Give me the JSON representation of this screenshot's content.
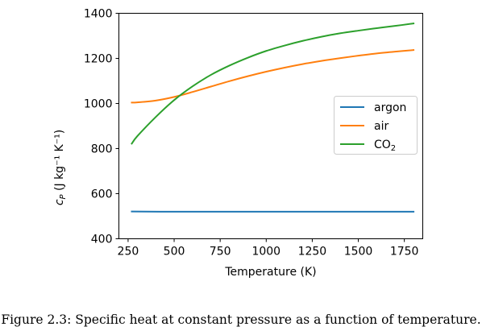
{
  "caption": "Figure 2.3: Specific heat at constant pressure as a function of temperature.",
  "chart_data": {
    "type": "line",
    "title": "",
    "xlabel": "Temperature (K)",
    "ylabel": "c_P (J kg⁻¹ K⁻¹)",
    "xlim": [
      200,
      1850
    ],
    "ylim": [
      400,
      1400
    ],
    "xticks": [
      "250",
      "500",
      "750",
      "1000",
      "1250",
      "1500",
      "1750"
    ],
    "yticks": [
      "400",
      "600",
      "800",
      "1000",
      "1200",
      "1400"
    ],
    "grid": false,
    "legend_position": "center-right",
    "series": [
      {
        "name": "argon",
        "color": "#1f77b4",
        "x": [
          270,
          500,
          750,
          1000,
          1250,
          1500,
          1800
        ],
        "y": [
          521,
          520,
          520,
          520,
          520,
          520,
          520
        ]
      },
      {
        "name": "air",
        "color": "#ff7f0e",
        "x": [
          270,
          300,
          400,
          500,
          600,
          700,
          800,
          900,
          1000,
          1100,
          1200,
          1300,
          1400,
          1500,
          1600,
          1700,
          1800
        ],
        "y": [
          1004,
          1005,
          1013,
          1029,
          1051,
          1075,
          1099,
          1121,
          1141,
          1159,
          1175,
          1189,
          1201,
          1212,
          1222,
          1230,
          1237
        ]
      },
      {
        "name": "CO₂",
        "color": "#2ca02c",
        "x": [
          270,
          300,
          400,
          500,
          600,
          700,
          800,
          900,
          1000,
          1100,
          1200,
          1300,
          1400,
          1500,
          1600,
          1700,
          1800
        ],
        "y": [
          822,
          855,
          940,
          1015,
          1076,
          1127,
          1168,
          1203,
          1233,
          1257,
          1278,
          1296,
          1311,
          1323,
          1334,
          1344,
          1355
        ]
      }
    ]
  }
}
